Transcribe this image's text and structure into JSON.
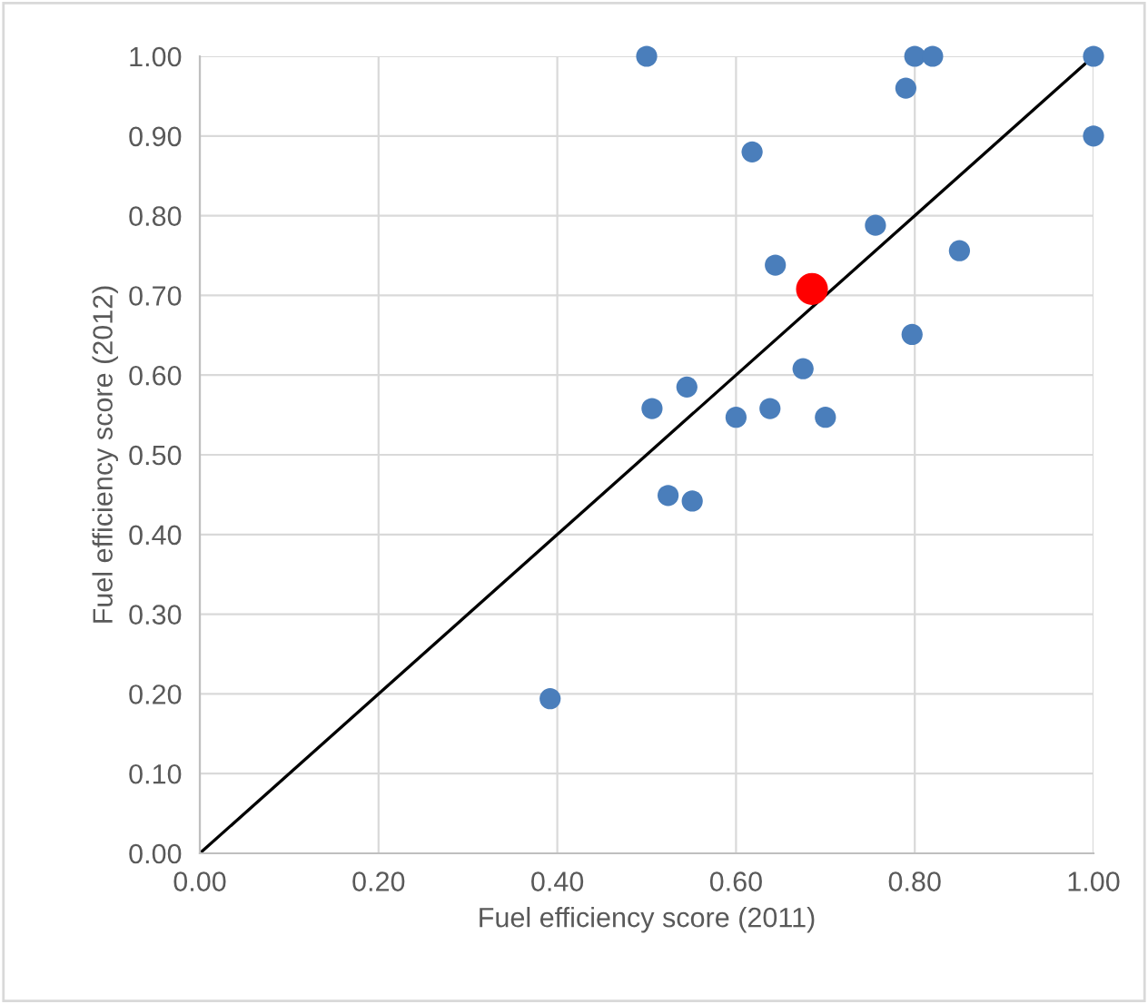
{
  "chart_data": {
    "type": "scatter",
    "xlabel": "Fuel efficiency score (2011)",
    "ylabel": "Fuel efficiency score (2012)",
    "xlim": [
      0,
      1
    ],
    "ylim": [
      0,
      1
    ],
    "xticks": [
      {
        "value": 0,
        "label": "0.00"
      },
      {
        "value": 0.2,
        "label": "0.20"
      },
      {
        "value": 0.4,
        "label": "0.40"
      },
      {
        "value": 0.6,
        "label": "0.60"
      },
      {
        "value": 0.8,
        "label": "0.80"
      },
      {
        "value": 1,
        "label": "1.00"
      }
    ],
    "yticks": [
      {
        "value": 0,
        "label": "0.00"
      },
      {
        "value": 0.1,
        "label": "0.10"
      },
      {
        "value": 0.2,
        "label": "0.20"
      },
      {
        "value": 0.3,
        "label": "0.30"
      },
      {
        "value": 0.4,
        "label": "0.40"
      },
      {
        "value": 0.5,
        "label": "0.50"
      },
      {
        "value": 0.6,
        "label": "0.60"
      },
      {
        "value": 0.7,
        "label": "0.70"
      },
      {
        "value": 0.8,
        "label": "0.80"
      },
      {
        "value": 0.9,
        "label": "0.90"
      },
      {
        "value": 1,
        "label": "1.00"
      }
    ],
    "grid": true,
    "series": [
      {
        "marker": "circle",
        "color": "#4a7ebb",
        "x": [
          0.5,
          0.8,
          0.82,
          1.0,
          0.79,
          1.0,
          0.618,
          0.756,
          0.85,
          0.644,
          0.797,
          0.675,
          0.545,
          0.506,
          0.638,
          0.6,
          0.7,
          0.524,
          0.551,
          0.392
        ],
        "values": [
          1.0,
          1.0,
          1.0,
          1.0,
          0.96,
          0.9,
          0.88,
          0.788,
          0.756,
          0.738,
          0.651,
          0.608,
          0.585,
          0.558,
          0.558,
          0.547,
          0.547,
          0.449,
          0.442,
          0.194
        ]
      },
      {
        "marker": "circle",
        "color": "#ff0000",
        "x": [
          0.685
        ],
        "values": [
          0.708
        ]
      },
      {
        "type": "line",
        "color": "#000000",
        "x": [
          0,
          1
        ],
        "values": [
          0,
          1
        ]
      }
    ]
  }
}
